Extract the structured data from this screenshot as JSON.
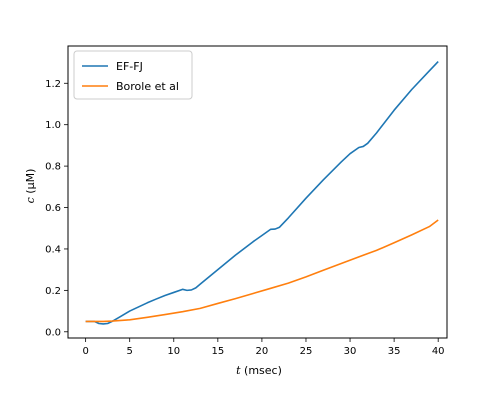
{
  "chart_data": {
    "type": "line",
    "xlabel_var": "t",
    "xlabel_unit": " (msec)",
    "ylabel_var": "c",
    "ylabel_unit": " (μM)",
    "xlim": [
      -2,
      41
    ],
    "ylim": [
      -0.03,
      1.38
    ],
    "xticks": [
      0,
      5,
      10,
      15,
      20,
      25,
      30,
      35,
      40
    ],
    "yticks": [
      0.0,
      0.2,
      0.4,
      0.6,
      0.8,
      1.0,
      1.2
    ],
    "grid": false,
    "legend_position": "top-left",
    "series": [
      {
        "name": "EF-FJ",
        "color": "#1f77b4",
        "x": [
          0,
          1,
          1.5,
          2,
          2.5,
          3,
          4,
          5,
          6,
          7,
          8,
          9,
          10,
          11,
          11.5,
          12,
          12.5,
          13,
          15,
          17,
          19,
          20,
          21,
          21.5,
          22,
          23,
          25,
          27,
          29,
          30,
          31,
          31.5,
          32,
          33,
          35,
          37,
          39,
          40
        ],
        "y": [
          0.05,
          0.05,
          0.04,
          0.038,
          0.04,
          0.05,
          0.075,
          0.1,
          0.12,
          0.14,
          0.158,
          0.175,
          0.19,
          0.205,
          0.2,
          0.202,
          0.212,
          0.23,
          0.3,
          0.37,
          0.435,
          0.465,
          0.495,
          0.496,
          0.505,
          0.55,
          0.645,
          0.735,
          0.82,
          0.86,
          0.89,
          0.895,
          0.91,
          0.96,
          1.07,
          1.17,
          1.26,
          1.305
        ]
      },
      {
        "name": "Borole et al",
        "color": "#ff7f0e",
        "x": [
          0,
          2,
          3,
          5,
          7,
          9,
          11,
          13,
          15,
          17,
          19,
          21,
          23,
          25,
          27,
          29,
          31,
          33,
          35,
          37,
          39,
          40
        ],
        "y": [
          0.05,
          0.05,
          0.052,
          0.058,
          0.07,
          0.083,
          0.097,
          0.113,
          0.137,
          0.16,
          0.185,
          0.21,
          0.235,
          0.265,
          0.298,
          0.33,
          0.362,
          0.393,
          0.43,
          0.468,
          0.508,
          0.54
        ]
      }
    ]
  }
}
